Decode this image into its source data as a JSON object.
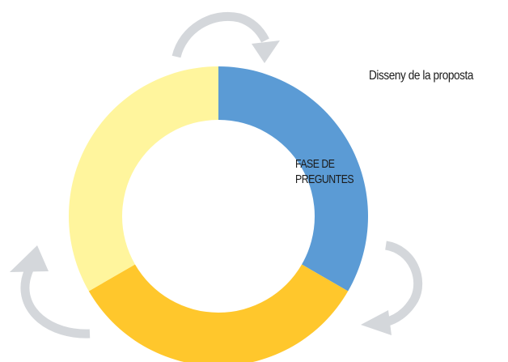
{
  "diagram": {
    "segments": [
      {
        "id": "blue",
        "color": "#5b9bd5",
        "start_deg": 0,
        "end_deg": 120
      },
      {
        "id": "gold",
        "color": "#ffc72c",
        "start_deg": 120,
        "end_deg": 240
      },
      {
        "id": "pale-yellow",
        "color": "#fff59d",
        "start_deg": 240,
        "end_deg": 360
      }
    ],
    "arrow_color": "#d4d7db",
    "label_lines": [
      "FASE DE",
      "PREGUNTES"
    ],
    "side_label": "Disseny de la proposta"
  }
}
